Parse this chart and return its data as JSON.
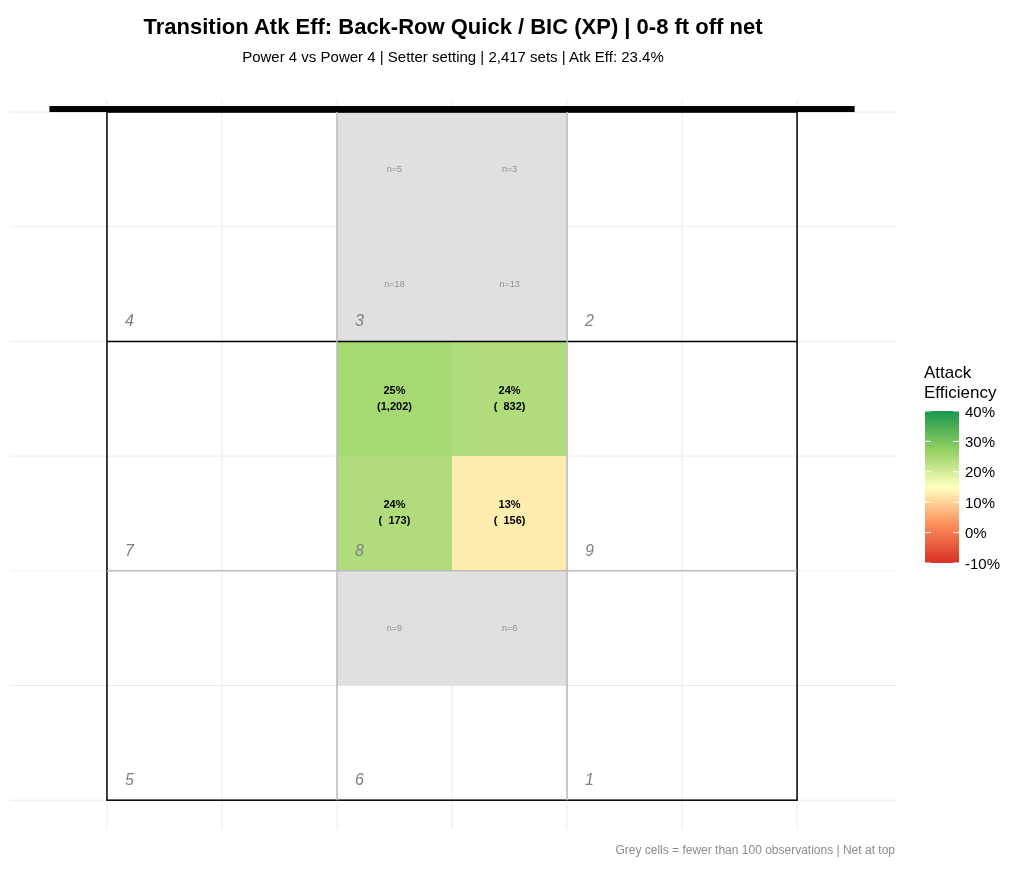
{
  "chart_data": {
    "type": "heatmap",
    "title": "Transition Atk Eff: Back-Row Quick / BIC (XP) | 0-8 ft off net",
    "subtitle": "Power 4 vs Power 4 | Setter setting | 2,417 sets | Atk Eff: 23.4%",
    "categories": [
      null,
      null
    ],
    "y_categories": [
      null,
      null
    ],
    "cells": [
      [
        25,
        24
      ],
      [
        24,
        13
      ]
    ],
    "cell_labels": [
      [
        "25%\n(1,202)",
        "24%\n(  832)"
      ],
      [
        "24%\n(  173)",
        "13%\n(  156)"
      ]
    ],
    "clabel": "Attack Efficiency",
    "clim": [
      -10,
      40
    ],
    "cticks": [
      {
        "value": 40,
        "label": "40%"
      },
      {
        "value": 30,
        "label": "30%"
      },
      {
        "value": 20,
        "label": "20%"
      },
      {
        "value": 10,
        "label": "10%"
      },
      {
        "value": 0,
        "label": "0%"
      },
      {
        "value": -10,
        "label": "-10%"
      }
    ],
    "grid": true,
    "annotations": [
      "4",
      "3",
      "2",
      "7",
      "8",
      "9",
      "5",
      "6",
      "1",
      "n=5",
      "n=3",
      "n=18",
      "n=13",
      "n=9",
      "n=6",
      "Grey cells = fewer than 100 observations | Net at top"
    ]
  }
}
